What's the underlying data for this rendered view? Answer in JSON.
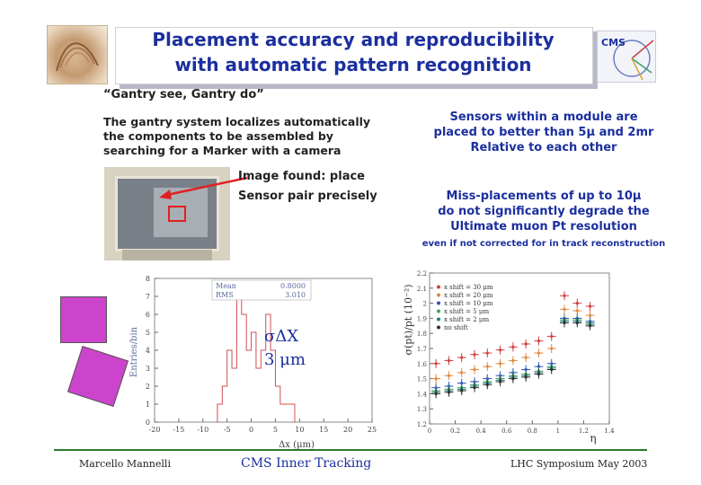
{
  "title": {
    "line1": "Placement accuracy and reproducibility",
    "line2": "with automatic pattern recognition"
  },
  "subtitle": "“Gantry see, Gantry do”",
  "description": {
    "line1": "The gantry system localizes automatically",
    "line2": "the components to be assembled by",
    "line3": "searching for a Marker with a camera"
  },
  "image_label": {
    "line1": "Image found: place",
    "line2": "Sensor pair precisely"
  },
  "right_text1": {
    "line1": "Sensors within a module are",
    "line2": "placed to better than 5μ and 2mr",
    "line3": "Relative to each other"
  },
  "right_text2": {
    "line1": "Miss-placements of up to 10μ",
    "line2": "do not significantly degrade the",
    "line3": "Ultimate muon Pt resolution"
  },
  "right_note": "even if not corrected for in track reconstruction",
  "sigma_label": {
    "line1": "σΔX",
    "line2": "3 μm"
  },
  "footer": {
    "left": "Marcello Mannelli",
    "center": "CMS Inner Tracking",
    "right": "LHC Symposium May 2003"
  },
  "logo_text": "CMS",
  "colors": {
    "title": "#1b2f9e",
    "hist": "#d05050",
    "footer_line": "#2a7a2a",
    "square": "#cc44cc"
  },
  "chart_data": [
    {
      "type": "bar",
      "ylabel": "Entries/bin",
      "xlabel": "Δx (μm)",
      "xlim": [
        -20,
        25
      ],
      "ylim": [
        0,
        8
      ],
      "xticks": [
        -20,
        -15,
        -10,
        -5,
        0,
        5,
        10,
        15,
        20,
        25
      ],
      "yticks": [
        0,
        1,
        2,
        3,
        4,
        5,
        6,
        7,
        8
      ],
      "stats": {
        "mean_label": "Mean",
        "mean_value": "0.8000",
        "rms_label": "RMS",
        "rms_value": "3.010"
      },
      "bin_edges": [
        -7,
        -6,
        -5,
        -4,
        -3,
        -2,
        -1,
        0,
        1,
        2,
        3,
        4,
        5,
        6,
        7,
        8,
        9
      ],
      "values": [
        1,
        2,
        4,
        3,
        7,
        6,
        4,
        5,
        3,
        4,
        6,
        4,
        2,
        1,
        1,
        1
      ]
    },
    {
      "type": "scatter",
      "xlabel": "η",
      "ylabel": "σ(pt)/pt (10⁻²)",
      "xlim": [
        0,
        1.4
      ],
      "ylim": [
        1.2,
        2.2
      ],
      "xticks": [
        "0",
        "0.2",
        "0.4",
        "0.6",
        "0.8",
        "1",
        "1.2",
        "1.4"
      ],
      "yticks": [
        "1.2",
        "1.3",
        "1.4",
        "1.5",
        "1.6",
        "1.7",
        "1.8",
        "1.9",
        "2",
        "2.1",
        "2.2"
      ],
      "x": [
        0.05,
        0.15,
        0.25,
        0.35,
        0.45,
        0.55,
        0.65,
        0.75,
        0.85,
        0.95,
        1.05,
        1.15,
        1.25
      ],
      "series": [
        {
          "name": "x shift = 30 μm",
          "color": "#d04040",
          "values": [
            1.6,
            1.62,
            1.64,
            1.66,
            1.67,
            1.69,
            1.71,
            1.73,
            1.75,
            1.78,
            2.05,
            2.0,
            1.98
          ]
        },
        {
          "name": "x shift = 20 μm",
          "color": "#e08a40",
          "values": [
            1.5,
            1.52,
            1.54,
            1.56,
            1.58,
            1.6,
            1.62,
            1.64,
            1.67,
            1.7,
            1.96,
            1.95,
            1.92
          ]
        },
        {
          "name": "x shift = 10 μm",
          "color": "#3050c0",
          "values": [
            1.44,
            1.45,
            1.47,
            1.48,
            1.5,
            1.52,
            1.54,
            1.56,
            1.58,
            1.6,
            1.9,
            1.9,
            1.88
          ]
        },
        {
          "name": "x shift = 5 μm",
          "color": "#40a060",
          "values": [
            1.42,
            1.43,
            1.44,
            1.46,
            1.48,
            1.5,
            1.52,
            1.53,
            1.55,
            1.58,
            1.89,
            1.89,
            1.87
          ]
        },
        {
          "name": "x shift = 2 μm",
          "color": "#208080",
          "values": [
            1.41,
            1.42,
            1.43,
            1.45,
            1.47,
            1.49,
            1.51,
            1.52,
            1.54,
            1.57,
            1.88,
            1.88,
            1.86
          ]
        },
        {
          "name": "no shift",
          "color": "#303030",
          "values": [
            1.4,
            1.41,
            1.42,
            1.44,
            1.46,
            1.48,
            1.5,
            1.51,
            1.53,
            1.56,
            1.87,
            1.87,
            1.85
          ]
        }
      ]
    }
  ]
}
